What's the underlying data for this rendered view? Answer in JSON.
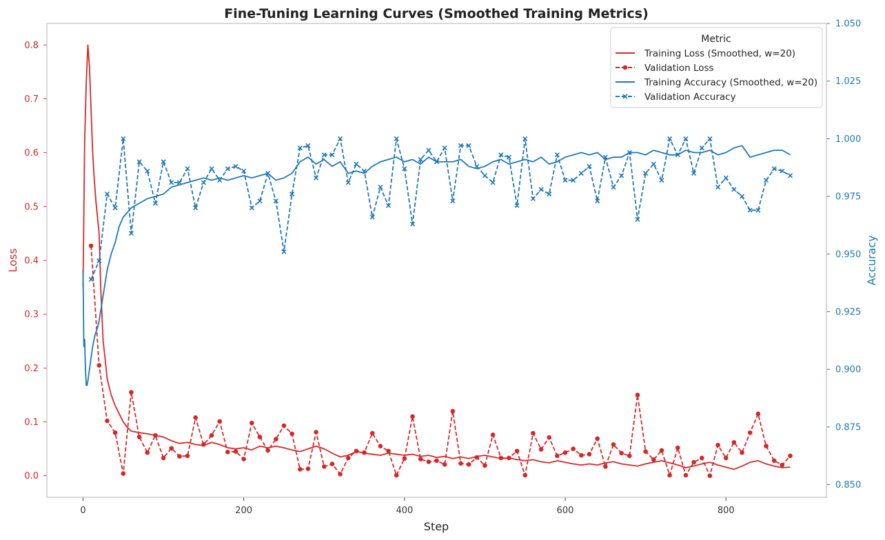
{
  "chart_data": {
    "type": "line",
    "title": "Fine-Tuning Learning Curves (Smoothed Training Metrics)",
    "xlabel": "Step",
    "ylabel_left": "Loss",
    "ylabel_right": "Accuracy",
    "xlim": [
      -45,
      925
    ],
    "ylim_left": [
      -0.04,
      0.84
    ],
    "ylim_right": [
      0.8445,
      1.05
    ],
    "x_ticks": [
      "0",
      "200",
      "400",
      "600",
      "800"
    ],
    "left_ticks": [
      "0.0",
      "0.1",
      "0.2",
      "0.3",
      "0.4",
      "0.5",
      "0.6",
      "0.7",
      "0.8"
    ],
    "right_ticks": [
      "0.850",
      "0.875",
      "0.900",
      "0.925",
      "0.950",
      "0.975",
      "1.000",
      "1.025",
      "1.050"
    ],
    "grid": false,
    "legend": {
      "title": "Metric",
      "position": "top-right",
      "entries": [
        "Training Loss (Smoothed, w=20)",
        "Validation Loss",
        "Training Accuracy (Smoothed, w=20)",
        "Validation Accuracy"
      ]
    },
    "colors": {
      "loss": "#d62728",
      "accuracy": "#1f77b4"
    },
    "series": [
      {
        "name": "Training Loss (Smoothed, w=20)",
        "axis": "left",
        "style": "solid",
        "x": [
          0,
          2,
          4,
          6,
          8,
          10,
          12,
          14,
          16,
          18,
          20,
          22,
          25,
          28,
          30,
          35,
          40,
          45,
          50,
          55,
          60,
          70,
          80,
          90,
          100,
          110,
          120,
          130,
          140,
          150,
          160,
          170,
          180,
          190,
          200,
          210,
          220,
          230,
          240,
          250,
          260,
          270,
          280,
          290,
          300,
          310,
          320,
          330,
          340,
          350,
          360,
          370,
          380,
          390,
          400,
          410,
          420,
          430,
          440,
          450,
          460,
          470,
          480,
          490,
          500,
          510,
          520,
          530,
          540,
          550,
          560,
          570,
          580,
          590,
          600,
          610,
          620,
          630,
          640,
          650,
          660,
          670,
          680,
          690,
          700,
          710,
          720,
          730,
          740,
          750,
          760,
          770,
          780,
          790,
          800,
          810,
          820,
          830,
          840,
          850,
          860,
          870,
          880
        ],
        "y": [
          0.35,
          0.62,
          0.73,
          0.8,
          0.76,
          0.68,
          0.6,
          0.55,
          0.51,
          0.48,
          0.45,
          0.35,
          0.25,
          0.21,
          0.18,
          0.15,
          0.13,
          0.115,
          0.1,
          0.09,
          0.083,
          0.08,
          0.078,
          0.075,
          0.072,
          0.065,
          0.06,
          0.062,
          0.058,
          0.056,
          0.062,
          0.058,
          0.052,
          0.05,
          0.052,
          0.048,
          0.055,
          0.052,
          0.055,
          0.052,
          0.048,
          0.045,
          0.05,
          0.055,
          0.05,
          0.042,
          0.035,
          0.038,
          0.045,
          0.042,
          0.04,
          0.038,
          0.042,
          0.04,
          0.038,
          0.04,
          0.036,
          0.038,
          0.034,
          0.036,
          0.032,
          0.035,
          0.032,
          0.036,
          0.038,
          0.035,
          0.032,
          0.033,
          0.03,
          0.028,
          0.03,
          0.026,
          0.024,
          0.028,
          0.025,
          0.022,
          0.02,
          0.022,
          0.02,
          0.024,
          0.026,
          0.022,
          0.02,
          0.018,
          0.022,
          0.025,
          0.028,
          0.024,
          0.02,
          0.015,
          0.018,
          0.022,
          0.025,
          0.02,
          0.016,
          0.012,
          0.018,
          0.025,
          0.028,
          0.022,
          0.018,
          0.015,
          0.016
        ]
      },
      {
        "name": "Validation Loss",
        "axis": "left",
        "style": "dashed-dot",
        "x": [
          10,
          20,
          30,
          40,
          50,
          60,
          70,
          80,
          90,
          100,
          110,
          120,
          130,
          140,
          150,
          160,
          170,
          180,
          190,
          200,
          210,
          220,
          230,
          240,
          250,
          260,
          270,
          280,
          290,
          300,
          310,
          320,
          330,
          340,
          350,
          360,
          370,
          380,
          390,
          400,
          410,
          420,
          430,
          440,
          450,
          460,
          470,
          480,
          490,
          500,
          510,
          520,
          530,
          540,
          550,
          560,
          570,
          580,
          590,
          600,
          610,
          620,
          630,
          640,
          650,
          660,
          670,
          680,
          690,
          700,
          710,
          720,
          730,
          740,
          750,
          760,
          770,
          780,
          790,
          800,
          810,
          820,
          830,
          840,
          850,
          860,
          870,
          880
        ],
        "y": [
          0.427,
          0.205,
          0.102,
          0.08,
          0.004,
          0.155,
          0.072,
          0.043,
          0.075,
          0.033,
          0.051,
          0.036,
          0.037,
          0.108,
          0.058,
          0.075,
          0.101,
          0.044,
          0.045,
          0.031,
          0.098,
          0.072,
          0.047,
          0.068,
          0.093,
          0.078,
          0.012,
          0.013,
          0.081,
          0.017,
          0.022,
          0.003,
          0.033,
          0.046,
          0.043,
          0.079,
          0.055,
          0.046,
          0.001,
          0.032,
          0.11,
          0.031,
          0.026,
          0.028,
          0.021,
          0.12,
          0.023,
          0.021,
          0.034,
          0.019,
          0.076,
          0.033,
          0.033,
          0.046,
          0.001,
          0.079,
          0.049,
          0.071,
          0.037,
          0.043,
          0.05,
          0.038,
          0.04,
          0.069,
          0.017,
          0.058,
          0.042,
          0.037,
          0.15,
          0.045,
          0.03,
          0.047,
          0.001,
          0.052,
          0.001,
          0.025,
          0.033,
          0.0,
          0.057,
          0.033,
          0.062,
          0.043,
          0.08,
          0.115,
          0.055,
          0.028,
          0.02,
          0.037
        ]
      },
      {
        "name": "Training Accuracy (Smoothed, w=20)",
        "axis": "right",
        "style": "solid",
        "x": [
          0,
          1,
          2,
          3,
          4,
          5,
          6,
          8,
          10,
          12,
          15,
          18,
          20,
          25,
          30,
          35,
          40,
          45,
          50,
          55,
          60,
          70,
          80,
          90,
          100,
          110,
          120,
          130,
          140,
          150,
          160,
          170,
          180,
          190,
          200,
          210,
          220,
          230,
          240,
          250,
          260,
          270,
          280,
          290,
          300,
          310,
          320,
          330,
          340,
          350,
          360,
          370,
          380,
          390,
          400,
          410,
          420,
          430,
          440,
          450,
          460,
          470,
          480,
          490,
          500,
          510,
          520,
          530,
          540,
          550,
          560,
          570,
          580,
          590,
          600,
          610,
          620,
          630,
          640,
          650,
          660,
          670,
          680,
          690,
          700,
          710,
          720,
          730,
          740,
          750,
          760,
          770,
          780,
          790,
          800,
          810,
          820,
          830,
          840,
          850,
          860,
          870,
          880
        ],
        "y": [
          0.943,
          0.91,
          0.913,
          0.9,
          0.893,
          0.893,
          0.895,
          0.9,
          0.905,
          0.91,
          0.915,
          0.918,
          0.921,
          0.932,
          0.943,
          0.95,
          0.955,
          0.962,
          0.966,
          0.968,
          0.97,
          0.972,
          0.974,
          0.975,
          0.976,
          0.979,
          0.98,
          0.981,
          0.982,
          0.983,
          0.982,
          0.983,
          0.982,
          0.983,
          0.984,
          0.983,
          0.984,
          0.985,
          0.982,
          0.983,
          0.985,
          0.99,
          0.992,
          0.989,
          0.991,
          0.988,
          0.99,
          0.985,
          0.986,
          0.985,
          0.988,
          0.99,
          0.991,
          0.992,
          0.99,
          0.991,
          0.989,
          0.992,
          0.99,
          0.99,
          0.99,
          0.991,
          0.988,
          0.987,
          0.988,
          0.99,
          0.991,
          0.989,
          0.99,
          0.991,
          0.99,
          0.992,
          0.989,
          0.99,
          0.992,
          0.993,
          0.994,
          0.993,
          0.994,
          0.991,
          0.992,
          0.992,
          0.994,
          0.994,
          0.993,
          0.995,
          0.994,
          0.993,
          0.993,
          0.995,
          0.994,
          0.994,
          0.995,
          0.993,
          0.994,
          0.996,
          0.997,
          0.992,
          0.993,
          0.994,
          0.995,
          0.995,
          0.993
        ]
      },
      {
        "name": "Validation Accuracy",
        "axis": "right",
        "style": "dashed-x",
        "x": [
          10,
          20,
          30,
          40,
          50,
          60,
          70,
          80,
          90,
          100,
          110,
          120,
          130,
          140,
          150,
          160,
          170,
          180,
          190,
          200,
          210,
          220,
          230,
          240,
          250,
          260,
          270,
          280,
          290,
          300,
          310,
          320,
          330,
          340,
          350,
          360,
          370,
          380,
          390,
          400,
          410,
          420,
          430,
          440,
          450,
          460,
          470,
          480,
          490,
          500,
          510,
          520,
          530,
          540,
          550,
          560,
          570,
          580,
          590,
          600,
          610,
          620,
          630,
          640,
          650,
          660,
          670,
          680,
          690,
          700,
          710,
          720,
          730,
          740,
          750,
          760,
          770,
          780,
          790,
          800,
          810,
          820,
          830,
          840,
          850,
          860,
          870,
          880
        ],
        "y": [
          0.939,
          0.947,
          0.976,
          0.97,
          1.0,
          0.959,
          0.99,
          0.986,
          0.972,
          0.99,
          0.981,
          0.981,
          0.987,
          0.97,
          0.981,
          0.987,
          0.982,
          0.987,
          0.988,
          0.986,
          0.97,
          0.973,
          0.985,
          0.973,
          0.951,
          0.976,
          0.996,
          0.997,
          0.983,
          0.993,
          0.993,
          1.0,
          0.981,
          0.989,
          0.986,
          0.966,
          0.979,
          0.971,
          1.0,
          0.987,
          0.963,
          0.991,
          0.995,
          0.99,
          0.996,
          0.973,
          0.997,
          0.997,
          0.988,
          0.984,
          0.981,
          0.993,
          0.992,
          0.971,
          1.0,
          0.974,
          0.978,
          0.976,
          0.993,
          0.982,
          0.982,
          0.985,
          0.988,
          0.973,
          0.992,
          0.979,
          0.984,
          0.994,
          0.965,
          0.985,
          0.989,
          0.982,
          1.0,
          0.993,
          1.0,
          0.985,
          0.996,
          1.0,
          0.979,
          0.983,
          0.978,
          0.975,
          0.969,
          0.969,
          0.982,
          0.987,
          0.986,
          0.984
        ]
      }
    ]
  }
}
